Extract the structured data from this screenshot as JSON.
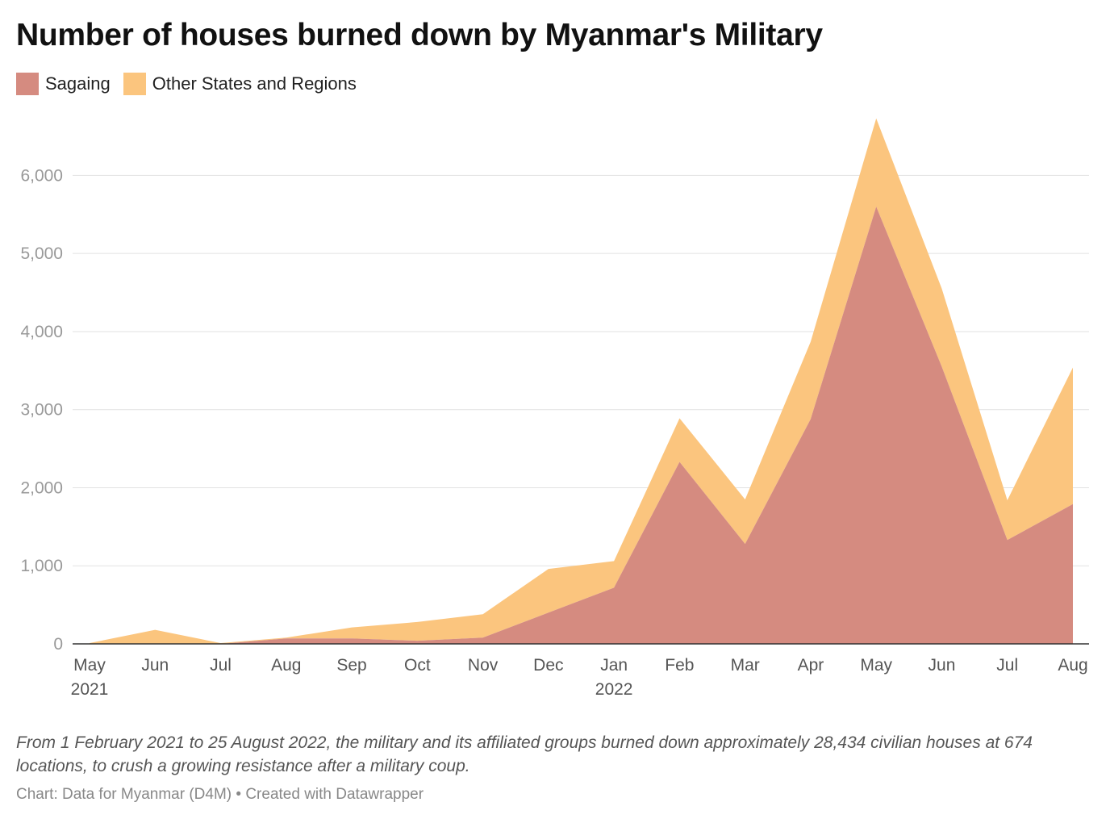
{
  "title": "Number of houses burned down by Myanmar's Military",
  "description": "From 1 February 2021 to 25 August 2022, the military and its affiliated groups burned down approximately 28,434 civilian houses at 674 locations, to crush a growing resistance after a military coup.",
  "source": "Chart: Data for Myanmar (D4M) • Created with Datawrapper",
  "chart_data": {
    "type": "area",
    "stacked": true,
    "title": "Number of houses burned down by Myanmar's Military",
    "categories": [
      "May",
      "Jun",
      "Jul",
      "Aug",
      "Sep",
      "Oct",
      "Nov",
      "Dec",
      "Jan",
      "Feb",
      "Mar",
      "Apr",
      "May",
      "Jun",
      "Jul",
      "Aug"
    ],
    "year_labels": [
      "2021",
      "",
      "",
      "",
      "",
      "",
      "",
      "",
      "2022",
      "",
      "",
      "",
      "",
      "",
      "",
      ""
    ],
    "y_ticks": [
      0,
      1000,
      2000,
      3000,
      4000,
      5000,
      6000
    ],
    "y_tick_labels": [
      "0",
      "1,000",
      "2,000",
      "3,000",
      "4,000",
      "5,000",
      "6,000"
    ],
    "ylim": [
      0,
      6800
    ],
    "grid": true,
    "legend_position": "top-left",
    "series": [
      {
        "name": "Sagaing",
        "color": "#d58b80",
        "values": [
          0,
          0,
          0,
          70,
          70,
          40,
          80,
          400,
          720,
          2330,
          1280,
          2880,
          5600,
          3550,
          1330,
          1790
        ]
      },
      {
        "name": "Other States and Regions",
        "color": "#fbc57e",
        "values": [
          10,
          180,
          10,
          10,
          140,
          240,
          300,
          560,
          340,
          560,
          570,
          990,
          1130,
          1000,
          510,
          1750
        ]
      }
    ]
  }
}
